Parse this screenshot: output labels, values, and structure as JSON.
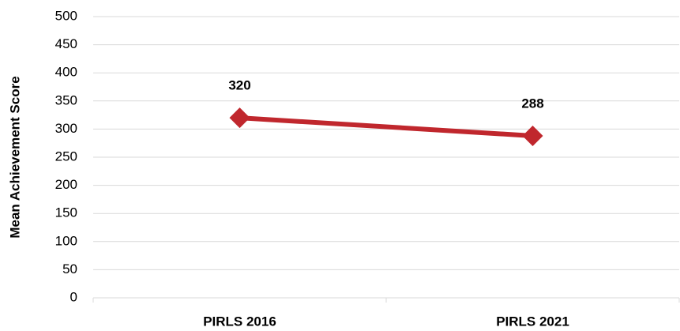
{
  "chart_data": {
    "type": "line",
    "y_label": "Mean Achievement Score",
    "categories": [
      "PIRLS 2016",
      "PIRLS 2021"
    ],
    "series": [
      {
        "name": "Mean Achievement Score",
        "color": "#c0272d",
        "values": [
          320,
          288
        ]
      }
    ],
    "ylim": [
      0,
      500
    ],
    "yticks": [
      0,
      50,
      100,
      150,
      200,
      250,
      300,
      350,
      400,
      450,
      500
    ],
    "grid": true
  }
}
